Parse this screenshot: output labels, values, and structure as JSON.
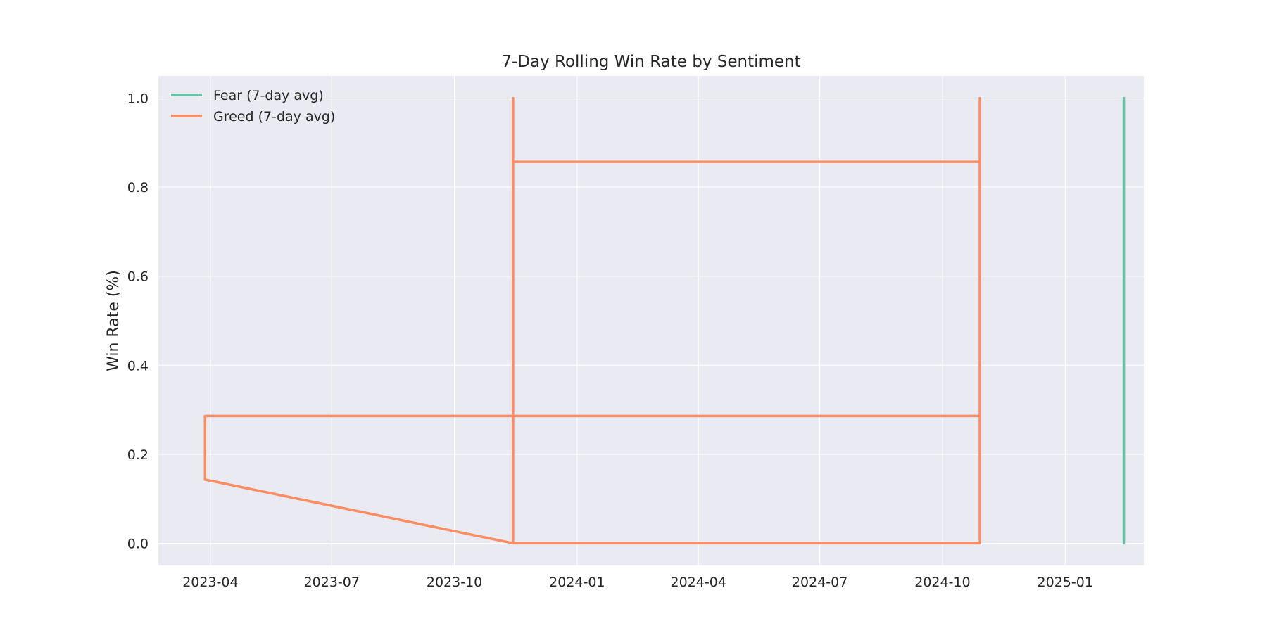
{
  "chart_data": {
    "type": "line",
    "title": "7-Day Rolling Win Rate by Sentiment",
    "xlabel": "",
    "ylabel": "Win Rate (%)",
    "x_ticks": [
      "2023-04",
      "2023-07",
      "2023-10",
      "2024-01",
      "2024-04",
      "2024-07",
      "2024-10",
      "2025-01"
    ],
    "y_ticks": [
      "0.0",
      "0.2",
      "0.4",
      "0.6",
      "0.8",
      "1.0"
    ],
    "ylim": [
      -0.05,
      1.05
    ],
    "xlim": [
      "2023-02-21",
      "2025-03-01"
    ],
    "grid": true,
    "legend_position": "upper-left",
    "series": [
      {
        "name": "Fear (7-day avg)",
        "color": "#66c2a5",
        "x": [
          "2025-02-14",
          "2025-02-14",
          "2025-02-14",
          "2025-02-14",
          "2025-02-14",
          "2025-02-14"
        ],
        "y": [
          0.0,
          1.0,
          0.714,
          1.0,
          0.0,
          0.857
        ]
      },
      {
        "name": "Greed (7-day avg)",
        "color": "#fc8d62",
        "x": [
          "2023-03-28",
          "2023-03-28",
          "2023-11-14",
          "2023-11-14",
          "2023-11-14",
          "2023-11-14",
          "2024-10-29",
          "2024-10-29",
          "2024-10-29",
          "2024-10-29",
          "2023-11-14",
          "2023-11-14",
          "2023-11-14",
          "2024-10-29",
          "2024-10-29",
          "2024-10-29",
          "2023-11-14",
          "2023-03-28",
          "2023-03-28",
          "2023-11-14"
        ],
        "y": [
          0.143,
          0.286,
          0.286,
          1.0,
          0.857,
          0.857,
          0.857,
          1.0,
          0.286,
          0.286,
          0.286,
          0.0,
          0.0,
          0.0,
          1.0,
          0.286,
          0.286,
          0.286,
          0.143,
          0.0
        ]
      }
    ]
  }
}
